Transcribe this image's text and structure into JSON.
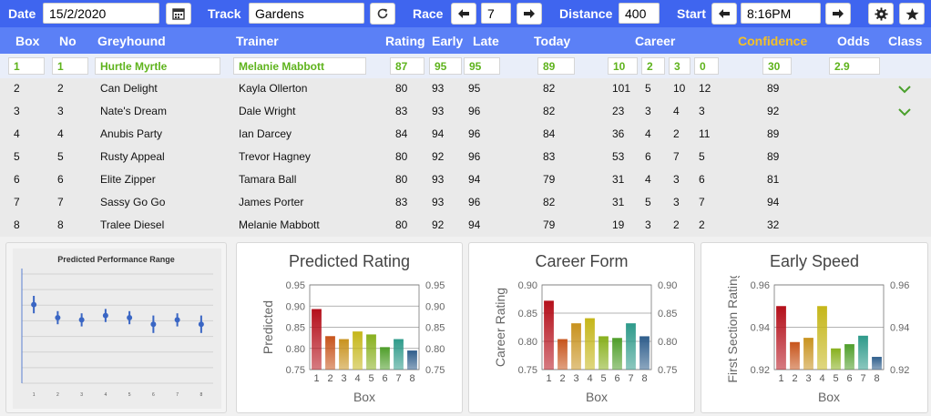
{
  "toolbar": {
    "date_label": "Date",
    "date_value": "15/2/2020",
    "track_label": "Track",
    "track_value": "Gardens",
    "race_label": "Race",
    "race_value": "7",
    "distance_label": "Distance",
    "distance_value": "400",
    "start_label": "Start",
    "start_value": "8:16PM"
  },
  "columns": {
    "box": "Box",
    "no": "No",
    "greyhound": "Greyhound",
    "trainer": "Trainer",
    "rating": "Rating",
    "early": "Early",
    "late": "Late",
    "today": "Today",
    "career": "Career",
    "confidence": "Confidence",
    "odds": "Odds",
    "class": "Class"
  },
  "selected": {
    "box": "1",
    "no": "1",
    "greyhound": "Hurtle Myrtle",
    "trainer": "Melanie Mabbott",
    "rating": "87",
    "early": "95",
    "late": "95",
    "today": "89",
    "career_starts": "10",
    "career_1": "2",
    "career_2": "3",
    "career_3": "0",
    "confidence": "30",
    "odds": "2.9"
  },
  "rows": [
    {
      "box": "2",
      "no": "2",
      "greyhound": "Can Delight",
      "trainer": "Kayla Ollerton",
      "rating": "80",
      "early": "93",
      "late": "95",
      "today": "82",
      "starts": "101",
      "c1": "5",
      "c2": "10",
      "c3": "12",
      "confidence": "89",
      "class_up": true
    },
    {
      "box": "3",
      "no": "3",
      "greyhound": "Nate's Dream",
      "trainer": "Dale Wright",
      "rating": "83",
      "early": "93",
      "late": "96",
      "today": "82",
      "starts": "23",
      "c1": "3",
      "c2": "4",
      "c3": "3",
      "confidence": "92",
      "class_up": true
    },
    {
      "box": "4",
      "no": "4",
      "greyhound": "Anubis Party",
      "trainer": "Ian Darcey",
      "rating": "84",
      "early": "94",
      "late": "96",
      "today": "84",
      "starts": "36",
      "c1": "4",
      "c2": "2",
      "c3": "11",
      "confidence": "89",
      "class_up": false
    },
    {
      "box": "5",
      "no": "5",
      "greyhound": "Rusty Appeal",
      "trainer": "Trevor Hagney",
      "rating": "80",
      "early": "92",
      "late": "96",
      "today": "83",
      "starts": "53",
      "c1": "6",
      "c2": "7",
      "c3": "5",
      "confidence": "89",
      "class_up": false
    },
    {
      "box": "6",
      "no": "6",
      "greyhound": "Elite Zipper",
      "trainer": "Tamara Ball",
      "rating": "80",
      "early": "93",
      "late": "94",
      "today": "79",
      "starts": "31",
      "c1": "4",
      "c2": "3",
      "c3": "6",
      "confidence": "81",
      "class_up": false
    },
    {
      "box": "7",
      "no": "7",
      "greyhound": "Sassy Go Go",
      "trainer": "James Porter",
      "rating": "83",
      "early": "93",
      "late": "96",
      "today": "82",
      "starts": "31",
      "c1": "5",
      "c2": "3",
      "c3": "7",
      "confidence": "94",
      "class_up": false
    },
    {
      "box": "8",
      "no": "8",
      "greyhound": "Tralee Diesel",
      "trainer": "Melanie Mabbott",
      "rating": "80",
      "early": "92",
      "late": "94",
      "today": "79",
      "starts": "19",
      "c1": "3",
      "c2": "2",
      "c3": "2",
      "confidence": "32",
      "class_up": false
    }
  ],
  "colors": {
    "toolbar_bg": "#3f65ef",
    "header_bg": "#5b80f6",
    "selected_text": "#5eb31c",
    "confidence_header": "#f5c125",
    "chevron": "#4aa02c"
  },
  "icons": {
    "calendar": "calendar-icon",
    "refresh": "refresh-icon",
    "prev": "arrow-left-icon",
    "next": "arrow-right-icon",
    "settings": "gear-icon",
    "favorite": "star-icon",
    "class_up": "chevron-down-icon"
  },
  "chart_data": [
    {
      "type": "scatter",
      "title": "Predicted Performance Range",
      "categories": [
        "1",
        "2",
        "3",
        "4",
        "5",
        "6",
        "7",
        "8"
      ],
      "values": [
        0.88,
        0.85,
        0.845,
        0.855,
        0.85,
        0.835,
        0.845,
        0.835
      ],
      "low": [
        0.86,
        0.835,
        0.83,
        0.84,
        0.835,
        0.815,
        0.83,
        0.815
      ],
      "high": [
        0.9,
        0.865,
        0.86,
        0.87,
        0.865,
        0.855,
        0.86,
        0.855
      ],
      "ylim": [
        0.7,
        0.95
      ]
    },
    {
      "type": "bar",
      "title": "Predicted Rating",
      "categories": [
        "1",
        "2",
        "3",
        "4",
        "5",
        "6",
        "7",
        "8"
      ],
      "values": [
        0.893,
        0.829,
        0.822,
        0.84,
        0.833,
        0.803,
        0.822,
        0.795
      ],
      "xlabel": "Box",
      "ylabel": "Predicted",
      "ylim": [
        0.75,
        0.95
      ],
      "yticks": [
        "0.95",
        "0.90",
        "0.85",
        "0.80",
        "0.75"
      ],
      "bar_colors": [
        "#b40f1a",
        "#c7541b",
        "#c8921e",
        "#c5b619",
        "#88b01e",
        "#4f9e2a",
        "#2e9a8a",
        "#2f5e8c"
      ]
    },
    {
      "type": "bar",
      "title": "Career Form",
      "categories": [
        "1",
        "2",
        "3",
        "4",
        "5",
        "6",
        "7",
        "8"
      ],
      "values": [
        0.872,
        0.804,
        0.832,
        0.841,
        0.809,
        0.806,
        0.832,
        0.809
      ],
      "xlabel": "Box",
      "ylabel": "Career Rating",
      "ylim": [
        0.75,
        0.9
      ],
      "yticks": [
        "0.90",
        "0.85",
        "0.80",
        "0.75"
      ],
      "bar_colors": [
        "#b40f1a",
        "#c7541b",
        "#c8921e",
        "#c5b619",
        "#88b01e",
        "#4f9e2a",
        "#2e9a8a",
        "#2f5e8c"
      ]
    },
    {
      "type": "bar",
      "title": "Early Speed",
      "categories": [
        "1",
        "2",
        "3",
        "4",
        "5",
        "6",
        "7",
        "8"
      ],
      "values": [
        0.95,
        0.933,
        0.935,
        0.95,
        0.93,
        0.932,
        0.936,
        0.926
      ],
      "xlabel": "Box",
      "ylabel": "First Section Rating",
      "ylim": [
        0.92,
        0.96
      ],
      "yticks": [
        "0.96",
        "0.94",
        "0.92"
      ],
      "bar_colors": [
        "#b40f1a",
        "#c7541b",
        "#c8921e",
        "#c5b619",
        "#88b01e",
        "#4f9e2a",
        "#2e9a8a",
        "#2f5e8c"
      ]
    }
  ]
}
